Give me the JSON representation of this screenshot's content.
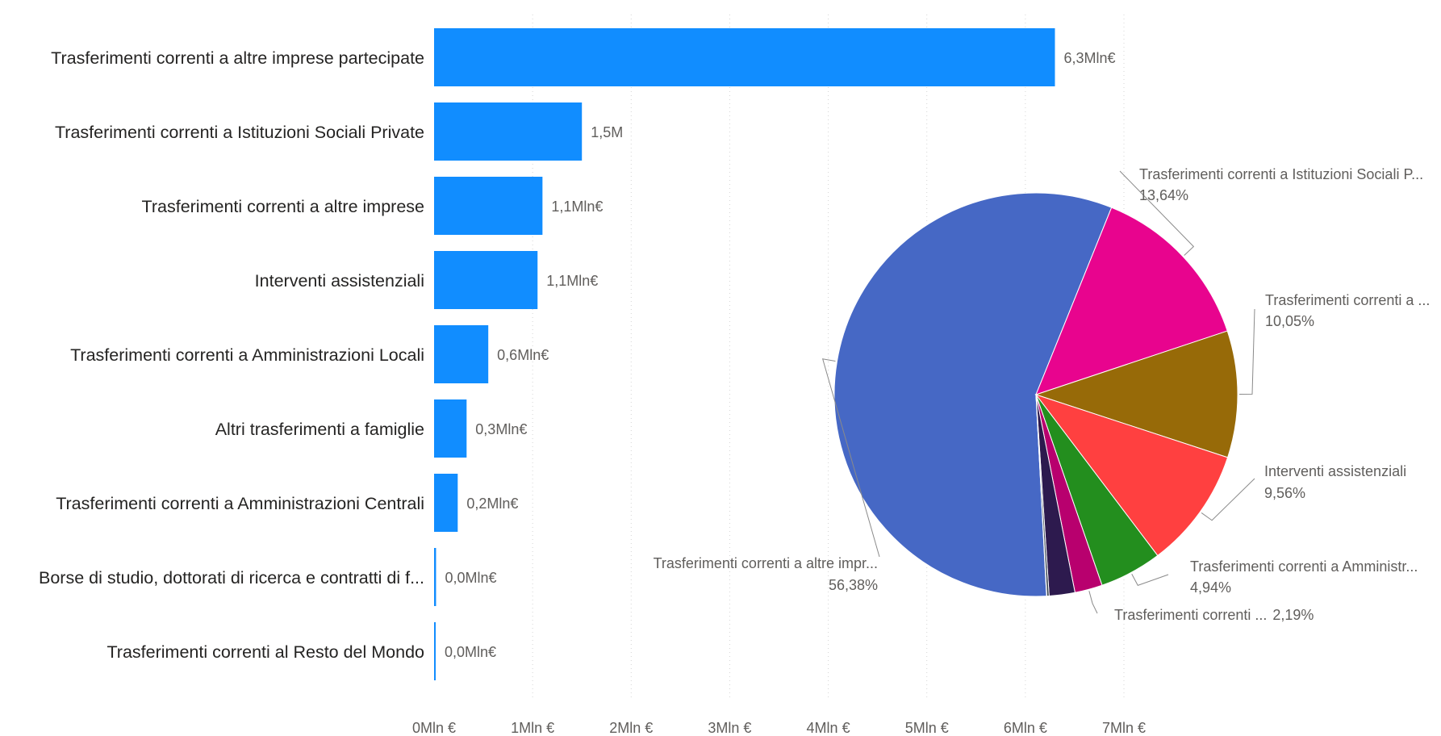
{
  "chart_data": [
    {
      "type": "bar",
      "orientation": "horizontal",
      "categories": [
        "Trasferimenti correnti a altre imprese partecipate",
        "Trasferimenti correnti a Istituzioni Sociali Private",
        "Trasferimenti correnti a altre imprese",
        "Interventi assistenziali",
        "Trasferimenti correnti a Amministrazioni Locali",
        "Altri trasferimenti a famiglie",
        "Trasferimenti correnti a Amministrazioni Centrali",
        "Borse di studio, dottorati di ricerca e contratti di f...",
        "Trasferimenti correnti al Resto del Mondo"
      ],
      "values": [
        6.3,
        1.5,
        1.1,
        1.05,
        0.55,
        0.33,
        0.24,
        0.02,
        0.01
      ],
      "data_labels": [
        "6,3Mln€",
        "1,5M",
        "1,1Mln€",
        "1,1Mln€",
        "0,6Mln€",
        "0,3Mln€",
        "0,2Mln€",
        "0,0Mln€",
        "0,0Mln€"
      ],
      "xlim": [
        0,
        7
      ],
      "xticks": [
        "0Mln €",
        "1Mln €",
        "2Mln €",
        "3Mln €",
        "4Mln €",
        "5Mln €",
        "6Mln €",
        "7Mln €"
      ],
      "grid": "vertical dotted",
      "bar_color": "#118DFF"
    },
    {
      "type": "pie",
      "slices": [
        {
          "label": "Trasferimenti correnti a altre impr...",
          "percent_label": "56,38%",
          "value": 56.38,
          "color": "#4668C5"
        },
        {
          "label": "Trasferimenti correnti a Istituzioni Sociali P...",
          "percent_label": "13,64%",
          "value": 13.64,
          "color": "#E8048E"
        },
        {
          "label": "Trasferimenti correnti a ...",
          "percent_label": "10,05%",
          "value": 10.05,
          "color": "#976A08"
        },
        {
          "label": "Interventi assistenziali",
          "percent_label": "9,56%",
          "value": 9.56,
          "color": "#FF4040"
        },
        {
          "label": "Trasferimenti correnti a Amministr...",
          "percent_label": "4,94%",
          "value": 4.94,
          "color": "#238E1E"
        },
        {
          "label": "Trasferimenti correnti ...",
          "percent_label": "2,19%",
          "value": 2.19,
          "color": "#B8006E"
        },
        {
          "label": "",
          "percent_label": "",
          "value": 2.04,
          "color": "#2D1A4E"
        },
        {
          "label": "",
          "percent_label": "",
          "value": 0.18,
          "color": "#3E4A55"
        },
        {
          "label": "",
          "percent_label": "",
          "value": 0.02,
          "color": "#6B7C5A"
        }
      ]
    }
  ]
}
